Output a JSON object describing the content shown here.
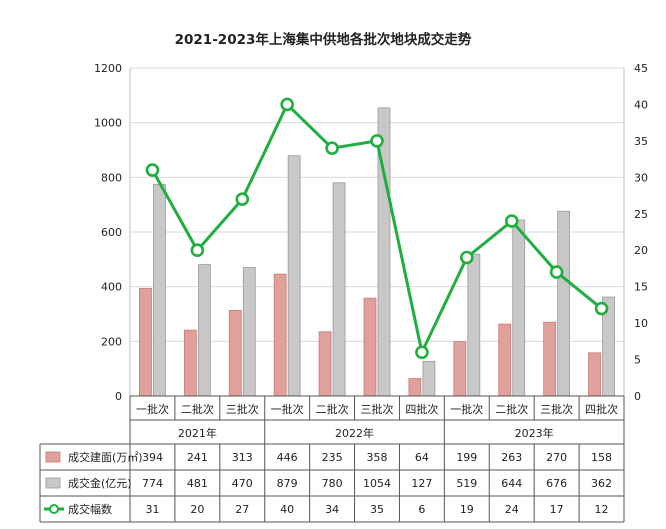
{
  "chart_data": {
    "type": "bar",
    "title": "2021-2023年上海集中供地各批次地块成交走势",
    "categories": [
      "一批次",
      "二批次",
      "三批次",
      "一批次",
      "二批次",
      "三批次",
      "四批次",
      "一批次",
      "二批次",
      "三批次",
      "四批次"
    ],
    "groups": [
      {
        "label": "2021年",
        "span": 3
      },
      {
        "label": "2022年",
        "span": 4
      },
      {
        "label": "2023年",
        "span": 4
      }
    ],
    "left_axis": {
      "ylim": [
        0,
        1200
      ],
      "ticks": [
        "0",
        "200",
        "400",
        "600",
        "800",
        "1000",
        "1200"
      ]
    },
    "right_axis": {
      "ylim": [
        0,
        45
      ],
      "ticks": [
        "0",
        "5",
        "10",
        "15",
        "20",
        "25",
        "30",
        "35",
        "40",
        "45"
      ]
    },
    "grid": true,
    "legend": "table-bottom",
    "series": [
      {
        "name": "成交建面(万㎡)",
        "type": "bar",
        "axis": "left",
        "color": "#e0a09c",
        "stroke": "#c97b76",
        "values": [
          394,
          241,
          313,
          446,
          235,
          358,
          64,
          199,
          263,
          270,
          158
        ]
      },
      {
        "name": "成交金(亿元)",
        "type": "bar",
        "axis": "left",
        "color": "#c8c8c8",
        "stroke": "#9a9a9a",
        "values": [
          774,
          481,
          470,
          879,
          780,
          1054,
          127,
          519,
          644,
          676,
          362
        ]
      },
      {
        "name": "成交幅数",
        "type": "line",
        "axis": "right",
        "color": "#1fae3f",
        "values": [
          31,
          20,
          27,
          40,
          34,
          35,
          6,
          19,
          24,
          17,
          12
        ]
      }
    ]
  }
}
